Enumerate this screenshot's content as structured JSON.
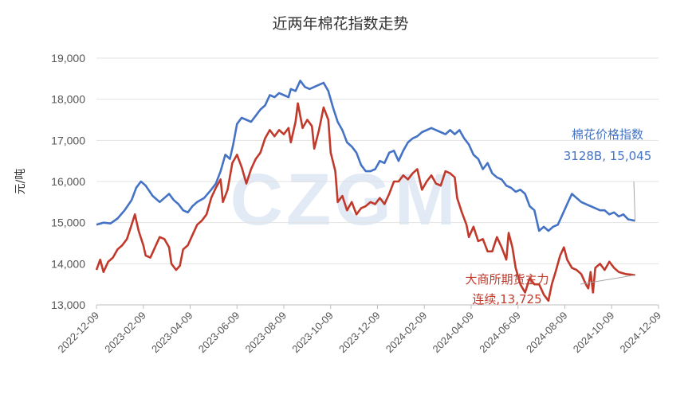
{
  "chart_data": {
    "type": "line",
    "title": "近两年棉花指数走势",
    "ylabel": "元/吨",
    "xlabel": "",
    "ylim": [
      13000,
      19000
    ],
    "yticks": [
      "13,000",
      "14,000",
      "15,000",
      "16,000",
      "17,000",
      "18,000",
      "19,000"
    ],
    "ytick_values": [
      13000,
      14000,
      15000,
      16000,
      17000,
      18000,
      19000
    ],
    "categories": [
      "2022-12-09",
      "2023-02-09",
      "2023-04-09",
      "2023-06-09",
      "2023-08-09",
      "2023-10-09",
      "2023-12-09",
      "2024-02-09",
      "2024-04-09",
      "2024-06-09",
      "2024-08-09",
      "2024-10-09",
      "2024-12-09"
    ],
    "watermark": "CZGM",
    "grid": true,
    "series": [
      {
        "name": "棉花价格指数 3128B",
        "color": "#4472c4",
        "label_lines": [
          "棉花价格指数",
          "3128B, 15,045"
        ],
        "values": [
          [
            0.0,
            14950
          ],
          [
            0.15,
            15000
          ],
          [
            0.3,
            14980
          ],
          [
            0.45,
            15100
          ],
          [
            0.6,
            15300
          ],
          [
            0.75,
            15550
          ],
          [
            0.85,
            15850
          ],
          [
            0.95,
            16000
          ],
          [
            1.05,
            15900
          ],
          [
            1.2,
            15650
          ],
          [
            1.35,
            15500
          ],
          [
            1.45,
            15600
          ],
          [
            1.55,
            15700
          ],
          [
            1.65,
            15550
          ],
          [
            1.75,
            15450
          ],
          [
            1.85,
            15300
          ],
          [
            1.95,
            15250
          ],
          [
            2.05,
            15400
          ],
          [
            2.15,
            15500
          ],
          [
            2.3,
            15600
          ],
          [
            2.45,
            15800
          ],
          [
            2.55,
            15950
          ],
          [
            2.65,
            16250
          ],
          [
            2.75,
            16650
          ],
          [
            2.85,
            16550
          ],
          [
            2.92,
            16900
          ],
          [
            3.0,
            17400
          ],
          [
            3.1,
            17550
          ],
          [
            3.2,
            17500
          ],
          [
            3.3,
            17450
          ],
          [
            3.4,
            17600
          ],
          [
            3.5,
            17750
          ],
          [
            3.6,
            17850
          ],
          [
            3.7,
            18100
          ],
          [
            3.8,
            18050
          ],
          [
            3.9,
            18150
          ],
          [
            4.0,
            18100
          ],
          [
            4.1,
            18050
          ],
          [
            4.15,
            18250
          ],
          [
            4.25,
            18200
          ],
          [
            4.35,
            18450
          ],
          [
            4.45,
            18300
          ],
          [
            4.55,
            18250
          ],
          [
            4.65,
            18300
          ],
          [
            4.75,
            18350
          ],
          [
            4.85,
            18400
          ],
          [
            4.95,
            18200
          ],
          [
            5.05,
            17800
          ],
          [
            5.15,
            17450
          ],
          [
            5.25,
            17250
          ],
          [
            5.35,
            16950
          ],
          [
            5.45,
            16850
          ],
          [
            5.55,
            16700
          ],
          [
            5.65,
            16400
          ],
          [
            5.75,
            16250
          ],
          [
            5.85,
            16250
          ],
          [
            5.95,
            16300
          ],
          [
            6.05,
            16500
          ],
          [
            6.15,
            16450
          ],
          [
            6.25,
            16700
          ],
          [
            6.35,
            16750
          ],
          [
            6.45,
            16500
          ],
          [
            6.55,
            16750
          ],
          [
            6.65,
            16950
          ],
          [
            6.75,
            17050
          ],
          [
            6.85,
            17100
          ],
          [
            6.95,
            17200
          ],
          [
            7.05,
            17250
          ],
          [
            7.15,
            17300
          ],
          [
            7.25,
            17250
          ],
          [
            7.35,
            17200
          ],
          [
            7.45,
            17150
          ],
          [
            7.55,
            17250
          ],
          [
            7.65,
            17150
          ],
          [
            7.75,
            17250
          ],
          [
            7.85,
            17050
          ],
          [
            7.95,
            16900
          ],
          [
            8.05,
            16650
          ],
          [
            8.15,
            16550
          ],
          [
            8.25,
            16300
          ],
          [
            8.35,
            16450
          ],
          [
            8.45,
            16200
          ],
          [
            8.55,
            16100
          ],
          [
            8.65,
            16050
          ],
          [
            8.75,
            15900
          ],
          [
            8.85,
            15850
          ],
          [
            8.95,
            15750
          ],
          [
            9.05,
            15800
          ],
          [
            9.15,
            15700
          ],
          [
            9.25,
            15400
          ],
          [
            9.35,
            15300
          ],
          [
            9.45,
            14800
          ],
          [
            9.55,
            14900
          ],
          [
            9.65,
            14800
          ],
          [
            9.75,
            14900
          ],
          [
            9.85,
            14950
          ],
          [
            9.95,
            15200
          ],
          [
            10.05,
            15450
          ],
          [
            10.15,
            15700
          ],
          [
            10.25,
            15600
          ],
          [
            10.35,
            15500
          ],
          [
            10.45,
            15450
          ],
          [
            10.55,
            15400
          ],
          [
            10.65,
            15350
          ],
          [
            10.75,
            15300
          ],
          [
            10.85,
            15300
          ],
          [
            10.95,
            15200
          ],
          [
            11.05,
            15250
          ],
          [
            11.15,
            15150
          ],
          [
            11.25,
            15200
          ],
          [
            11.35,
            15080
          ],
          [
            11.5,
            15045
          ]
        ]
      },
      {
        "name": "大商所期货主力连续",
        "color": "#c0392b",
        "label_lines": [
          "大商所期货主力",
          "连续,13,725"
        ],
        "values": [
          [
            0.0,
            13850
          ],
          [
            0.08,
            14100
          ],
          [
            0.15,
            13800
          ],
          [
            0.25,
            14050
          ],
          [
            0.35,
            14150
          ],
          [
            0.45,
            14350
          ],
          [
            0.55,
            14450
          ],
          [
            0.65,
            14600
          ],
          [
            0.75,
            14950
          ],
          [
            0.82,
            15200
          ],
          [
            0.9,
            14800
          ],
          [
            1.0,
            14450
          ],
          [
            1.05,
            14200
          ],
          [
            1.15,
            14150
          ],
          [
            1.25,
            14400
          ],
          [
            1.35,
            14650
          ],
          [
            1.45,
            14600
          ],
          [
            1.55,
            14400
          ],
          [
            1.6,
            14000
          ],
          [
            1.7,
            13850
          ],
          [
            1.78,
            13950
          ],
          [
            1.85,
            14350
          ],
          [
            1.95,
            14450
          ],
          [
            2.05,
            14700
          ],
          [
            2.15,
            14950
          ],
          [
            2.25,
            15050
          ],
          [
            2.35,
            15200
          ],
          [
            2.45,
            15600
          ],
          [
            2.55,
            15850
          ],
          [
            2.65,
            16050
          ],
          [
            2.7,
            15500
          ],
          [
            2.8,
            15800
          ],
          [
            2.9,
            16450
          ],
          [
            3.0,
            16650
          ],
          [
            3.1,
            16350
          ],
          [
            3.2,
            15950
          ],
          [
            3.3,
            16300
          ],
          [
            3.4,
            16550
          ],
          [
            3.5,
            16700
          ],
          [
            3.6,
            17050
          ],
          [
            3.7,
            17250
          ],
          [
            3.8,
            17100
          ],
          [
            3.9,
            17250
          ],
          [
            4.0,
            17150
          ],
          [
            4.1,
            17300
          ],
          [
            4.15,
            16950
          ],
          [
            4.25,
            17450
          ],
          [
            4.3,
            17900
          ],
          [
            4.4,
            17300
          ],
          [
            4.5,
            17500
          ],
          [
            4.6,
            17350
          ],
          [
            4.65,
            16800
          ],
          [
            4.75,
            17250
          ],
          [
            4.85,
            17800
          ],
          [
            4.95,
            17500
          ],
          [
            5.0,
            16700
          ],
          [
            5.1,
            16250
          ],
          [
            5.15,
            15500
          ],
          [
            5.25,
            15650
          ],
          [
            5.35,
            15300
          ],
          [
            5.45,
            15500
          ],
          [
            5.55,
            15200
          ],
          [
            5.65,
            15350
          ],
          [
            5.75,
            15400
          ],
          [
            5.85,
            15500
          ],
          [
            5.95,
            15450
          ],
          [
            6.05,
            15600
          ],
          [
            6.15,
            15450
          ],
          [
            6.25,
            15700
          ],
          [
            6.35,
            16000
          ],
          [
            6.45,
            16000
          ],
          [
            6.55,
            16150
          ],
          [
            6.65,
            16050
          ],
          [
            6.75,
            16200
          ],
          [
            6.85,
            16300
          ],
          [
            6.95,
            15800
          ],
          [
            7.05,
            16000
          ],
          [
            7.15,
            16150
          ],
          [
            7.25,
            15950
          ],
          [
            7.35,
            15900
          ],
          [
            7.45,
            16250
          ],
          [
            7.55,
            16200
          ],
          [
            7.65,
            16100
          ],
          [
            7.7,
            15600
          ],
          [
            7.8,
            15250
          ],
          [
            7.9,
            14950
          ],
          [
            7.95,
            14650
          ],
          [
            8.05,
            14900
          ],
          [
            8.15,
            14550
          ],
          [
            8.25,
            14600
          ],
          [
            8.35,
            14300
          ],
          [
            8.45,
            14300
          ],
          [
            8.55,
            14650
          ],
          [
            8.65,
            14400
          ],
          [
            8.75,
            14100
          ],
          [
            8.8,
            14750
          ],
          [
            8.88,
            14400
          ],
          [
            8.95,
            13900
          ],
          [
            9.05,
            13500
          ],
          [
            9.15,
            13300
          ],
          [
            9.25,
            13650
          ],
          [
            9.35,
            13500
          ],
          [
            9.45,
            13500
          ],
          [
            9.55,
            13250
          ],
          [
            9.65,
            13100
          ],
          [
            9.72,
            13500
          ],
          [
            9.8,
            13800
          ],
          [
            9.9,
            14200
          ],
          [
            9.98,
            14400
          ],
          [
            10.05,
            14100
          ],
          [
            10.15,
            13900
          ],
          [
            10.25,
            13850
          ],
          [
            10.35,
            13750
          ],
          [
            10.45,
            13500
          ],
          [
            10.5,
            13400
          ],
          [
            10.55,
            13800
          ],
          [
            10.6,
            13300
          ],
          [
            10.65,
            13900
          ],
          [
            10.75,
            14000
          ],
          [
            10.85,
            13850
          ],
          [
            10.95,
            14050
          ],
          [
            11.05,
            13900
          ],
          [
            11.15,
            13800
          ],
          [
            11.3,
            13750
          ],
          [
            11.5,
            13725
          ]
        ]
      }
    ]
  }
}
